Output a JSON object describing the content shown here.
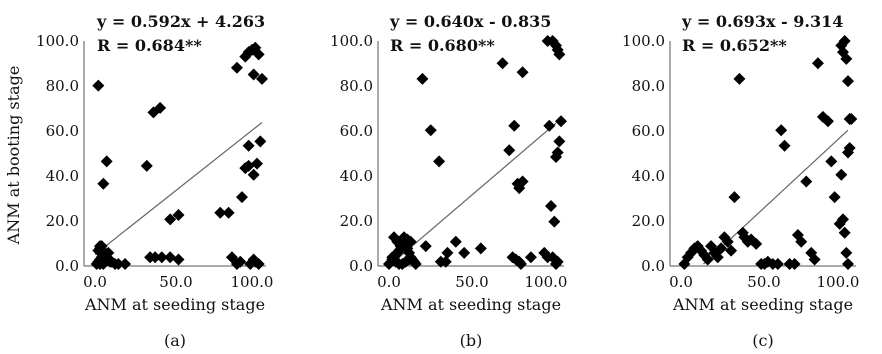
{
  "figure": {
    "ylabel": "ANM at booting stage"
  },
  "chart_data": [
    {
      "type": "scatter",
      "caption": "(a)",
      "xlabel": "ANM at seeding stage",
      "ylabel": "ANM at booting stage",
      "xlim": [
        0,
        100
      ],
      "ylim": [
        0,
        100
      ],
      "xticks": [
        "0.0",
        "50.0",
        "100.0"
      ],
      "yticks": [
        "0.0",
        "20.0",
        "40.0",
        "60.0",
        "80.0",
        "100.0"
      ],
      "equation": "y = 0.592x + 4.263",
      "r_text": "R = 0.684**",
      "trendline": {
        "slope": 0.592,
        "intercept": 4.263
      },
      "x": [
        1,
        2,
        3,
        4,
        5,
        6,
        5,
        7,
        8,
        2,
        3,
        4,
        6,
        8,
        9,
        3,
        5,
        7,
        10,
        12,
        14,
        18,
        2,
        5,
        7,
        3,
        6,
        31,
        35,
        39,
        45,
        50,
        36,
        40,
        33,
        45,
        50,
        75,
        80,
        85,
        90,
        92,
        94,
        96,
        98,
        100,
        88,
        92,
        95,
        97,
        99,
        90,
        92,
        95,
        98,
        93,
        95,
        96,
        85,
        87,
        82
      ],
      "y": [
        0,
        1,
        2,
        3,
        0,
        1,
        2,
        3,
        5,
        6,
        7,
        8,
        4,
        2,
        1,
        0,
        2,
        3,
        1,
        0,
        0,
        0,
        80,
        36,
        46,
        8,
        5,
        44,
        68,
        70,
        20,
        22,
        3,
        3,
        3,
        3,
        2,
        23,
        23,
        88,
        93,
        95,
        96,
        97,
        94,
        83,
        30,
        44,
        40,
        45,
        55,
        43,
        53,
        85,
        0,
        0,
        2,
        1,
        0,
        1,
        3
      ]
    },
    {
      "type": "scatter",
      "caption": "(b)",
      "xlabel": "ANM at seeding stage",
      "xlim": [
        0,
        100
      ],
      "ylim": [
        0,
        100
      ],
      "xticks": [
        "0.0",
        "50.0",
        "100.0"
      ],
      "yticks": [
        "0.0",
        "20.0",
        "40.0",
        "60.0",
        "80.0",
        "100.0"
      ],
      "equation": "y = 0.640x - 0.835",
      "r_text": "R = 0.680**",
      "trendline": {
        "slope": 0.64,
        "intercept": -0.835
      },
      "x": [
        0,
        2,
        3,
        4,
        5,
        6,
        7,
        8,
        9,
        10,
        11,
        12,
        13,
        14,
        15,
        16,
        3,
        5,
        7,
        9,
        11,
        13,
        8,
        10,
        12,
        2,
        4,
        6,
        20,
        25,
        30,
        35,
        40,
        45,
        22,
        31,
        34,
        55,
        68,
        72,
        75,
        77,
        78,
        80,
        74,
        76,
        78,
        79,
        95,
        98,
        100,
        101,
        102,
        96,
        97,
        99,
        93,
        95,
        100,
        101,
        102,
        103,
        98,
        100,
        101,
        80,
        85
      ],
      "y": [
        0,
        2,
        3,
        4,
        5,
        6,
        8,
        10,
        12,
        9,
        7,
        5,
        3,
        2,
        1,
        0,
        12,
        10,
        8,
        9,
        11,
        10,
        0,
        1,
        2,
        3,
        1,
        0,
        83,
        60,
        46,
        5,
        10,
        5,
        8,
        1,
        1,
        7,
        90,
        51,
        62,
        36,
        34,
        37,
        3,
        2,
        1,
        0,
        100,
        100,
        98,
        96,
        94,
        62,
        26,
        19,
        5,
        3,
        48,
        50,
        55,
        64,
        3,
        0,
        1,
        86,
        3
      ]
    },
    {
      "type": "scatter",
      "caption": "(c)",
      "xlabel": "ANM at seeding stage",
      "xlim": [
        0,
        100
      ],
      "ylim": [
        0,
        100
      ],
      "xticks": [
        "0.0",
        "50.0",
        "100.0"
      ],
      "yticks": [
        "0.0",
        "20.0",
        "40.0",
        "60.0",
        "80.0",
        "100.0"
      ],
      "equation": "y = 0.693x - 9.314",
      "r_text": "R = 0.652**",
      "trendline": {
        "slope": 0.693,
        "intercept": -9.314
      },
      "x": [
        2,
        4,
        6,
        8,
        10,
        12,
        14,
        16,
        18,
        20,
        22,
        24,
        26,
        28,
        30,
        32,
        35,
        37,
        38,
        40,
        42,
        45,
        48,
        50,
        52,
        55,
        58,
        60,
        62,
        65,
        68,
        70,
        72,
        75,
        78,
        80,
        82,
        85,
        88,
        90,
        92,
        95,
        96,
        97,
        98,
        99,
        100,
        100,
        101,
        102,
        96,
        97,
        98,
        99,
        100,
        101
      ],
      "y": [
        0,
        3,
        5,
        7,
        8,
        6,
        4,
        2,
        8,
        5,
        3,
        7,
        12,
        10,
        6,
        30,
        83,
        14,
        12,
        10,
        11,
        9,
        0,
        0,
        1,
        0,
        0,
        60,
        53,
        0,
        0,
        13,
        10,
        37,
        5,
        2,
        90,
        66,
        64,
        46,
        30,
        18,
        40,
        20,
        14,
        5,
        0,
        50,
        52,
        65,
        98,
        95,
        100,
        92,
        82,
        65
      ]
    }
  ],
  "panels": [
    {
      "caption": "(a)"
    },
    {
      "caption": "(b)"
    },
    {
      "caption": "(c)"
    }
  ]
}
